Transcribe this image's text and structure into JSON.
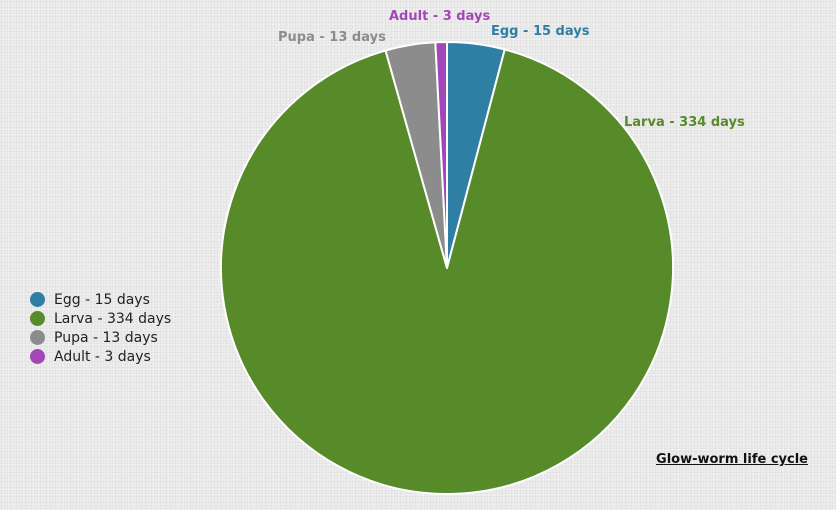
{
  "chart_data": {
    "type": "pie",
    "title": "Glow-worm life cycle",
    "slices": [
      {
        "label": "Egg - 15 days",
        "value": 15,
        "color": "#2f7ea3"
      },
      {
        "label": "Larva - 334 days",
        "value": 334,
        "color": "#578a29"
      },
      {
        "label": "Pupa - 13 days",
        "value": 13,
        "color": "#8c8c8c"
      },
      {
        "label": "Adult - 3 days",
        "value": 3,
        "color": "#a347b8"
      }
    ],
    "legend_position": "left"
  }
}
